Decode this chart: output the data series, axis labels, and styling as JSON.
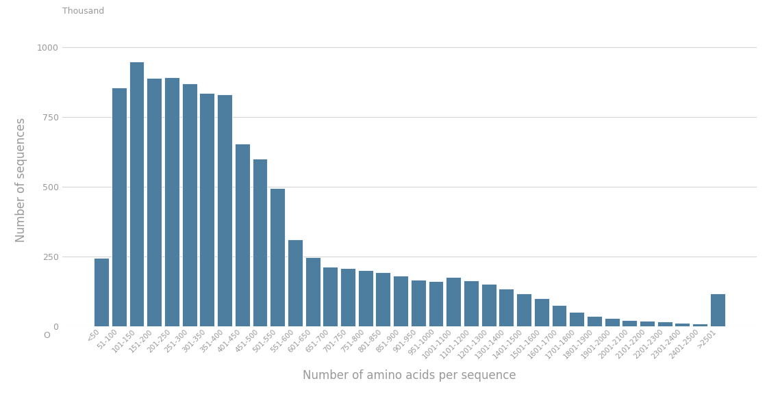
{
  "categories": [
    "<50",
    "51-100",
    "101-150",
    "151-200",
    "201-250",
    "251-300",
    "301-350",
    "351-400",
    "401-450",
    "451-500",
    "501-550",
    "551-600",
    "601-650",
    "651-700",
    "701-750",
    "751-800",
    "801-850",
    "851-900",
    "901-950",
    "951-1000",
    "1001-1100",
    "1101-1200",
    "1201-1300",
    "1301-1400",
    "1401-1500",
    "1501-1600",
    "1601-1700",
    "1701-1800",
    "1801-1900",
    "1901-2000",
    "2001-2100",
    "2101-2200",
    "2201-2300",
    "2301-2400",
    "2401-2500",
    ">2501"
  ],
  "values": [
    245,
    855,
    950,
    890,
    893,
    870,
    835,
    830,
    655,
    600,
    495,
    310,
    248,
    213,
    207,
    200,
    192,
    180,
    167,
    160,
    175,
    163,
    150,
    135,
    118,
    100,
    75,
    50,
    35,
    28,
    22,
    18,
    15,
    12,
    10,
    118
  ],
  "bar_color": "#4d7ea0",
  "xlabel": "Number of amino acids per sequence",
  "ylabel": "Number of sequences",
  "ylabel_unit": "Thousand",
  "ylim": [
    0,
    1050
  ],
  "yticks": [
    0,
    250,
    500,
    750,
    1000
  ],
  "background_color": "#ffffff",
  "grid_color": "#d5d5d5",
  "text_color": "#999999",
  "bar_edgecolor": "#ffffff"
}
